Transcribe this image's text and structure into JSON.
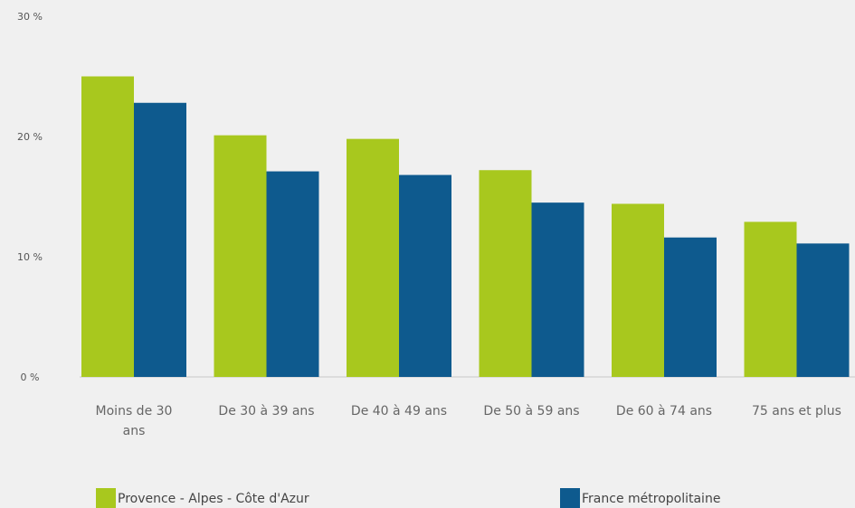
{
  "chart_data": {
    "type": "bar",
    "title": "",
    "xlabel": "",
    "ylabel": "",
    "categories": [
      "Moins de 30 ans",
      "De 30 à 39 ans",
      "De 40 à 49 ans",
      "De 50 à 59 ans",
      "De 60 à 74 ans",
      "75 ans et plus"
    ],
    "category_lines": [
      [
        "Moins de 30",
        "ans"
      ],
      [
        "De 30 à 39 ans"
      ],
      [
        "De 40 à 49 ans"
      ],
      [
        "De 50 à 59 ans"
      ],
      [
        "De 60 à 74 ans"
      ],
      [
        "75 ans et plus"
      ]
    ],
    "series": [
      {
        "name": "Provence - Alpes - Côte d'Azur",
        "color": "#a8c81e",
        "values": [
          25.0,
          20.1,
          19.8,
          17.2,
          14.4,
          12.9
        ]
      },
      {
        "name": "France métropolitaine",
        "color": "#0e5a8e",
        "values": [
          22.8,
          17.1,
          16.8,
          14.5,
          11.6,
          11.1
        ]
      }
    ],
    "ylim": [
      0,
      30
    ],
    "yticks": [
      0,
      10,
      20,
      30
    ],
    "ytick_labels": [
      "0 %",
      "10 %",
      "20 %",
      "30 %"
    ],
    "grid": false,
    "legend_position": "bottom"
  }
}
